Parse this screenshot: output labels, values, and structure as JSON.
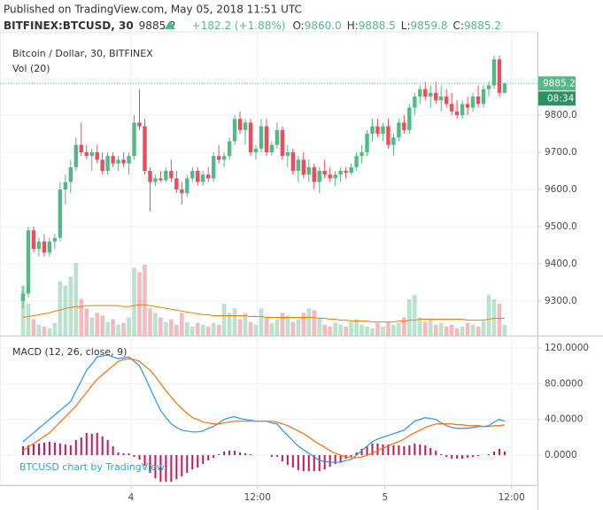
{
  "header": {
    "published": "Published on TradingView.com, May 05, 2018 11:51 UTC",
    "symbol": "BITFINEX:BTCUSD, 30",
    "last": "9885.2",
    "change": "+182.2 (+1.88%)",
    "ohlc": [
      {
        "label": "O:",
        "value": "9860.0"
      },
      {
        "label": "H:",
        "value": "9888.5"
      },
      {
        "label": "L:",
        "value": "9859.8"
      },
      {
        "label": "C:",
        "value": "9885.2"
      }
    ]
  },
  "watermark": "BTCUSD chart by TradingView",
  "chart_data": [
    {
      "type": "candlestick",
      "title": "Bitcoin / Dollar, 30, BITFINEX",
      "volume_title": "Vol (20)",
      "up_color": "#53b987",
      "down_color": "#eb4d5c",
      "volume_ma_color": "#f57c00",
      "price_label": "9885.2",
      "countdown": "08:34",
      "xlim": [
        -4.35,
        97.2
      ],
      "ylim": [
        9207,
        10024
      ],
      "yticks": [
        {
          "value": 9300,
          "label": "9300.0"
        },
        {
          "value": 9400,
          "label": "9400.0"
        },
        {
          "value": 9500,
          "label": "9500.0"
        },
        {
          "value": 9600,
          "label": "9600.0"
        },
        {
          "value": 9700,
          "label": "9700.0"
        },
        {
          "value": 9800,
          "label": "9800.0"
        }
      ],
      "open": [
        9300,
        9320,
        9490,
        9440,
        9460,
        9430,
        9460,
        9470,
        9600,
        9620,
        9660,
        9720,
        9700,
        9690,
        9700,
        9680,
        9650,
        9690,
        9670,
        9680,
        9670,
        9690,
        9780,
        9770,
        9650,
        9620,
        9630,
        9625,
        9650,
        9630,
        9600,
        9590,
        9630,
        9650,
        9620,
        9640,
        9630,
        9690,
        9680,
        9690,
        9730,
        9790,
        9760,
        9780,
        9700,
        9710,
        9770,
        9700,
        9720,
        9760,
        9690,
        9700,
        9650,
        9680,
        9640,
        9660,
        9620,
        9650,
        9640,
        9630,
        9640,
        9650,
        9645,
        9660,
        9690,
        9700,
        9750,
        9770,
        9750,
        9770,
        9720,
        9740,
        9780,
        9760,
        9820,
        9850,
        9870,
        9850,
        9860,
        9840,
        9850,
        9830,
        9810,
        9800,
        9830,
        9820,
        9850,
        9830,
        9870,
        9880,
        9950,
        9860
      ],
      "high": [
        9340,
        9500,
        9500,
        9470,
        9480,
        9470,
        9480,
        9620,
        9640,
        9680,
        9740,
        9780,
        9720,
        9710,
        9720,
        9700,
        9700,
        9700,
        9690,
        9700,
        9700,
        9800,
        9870,
        9790,
        9660,
        9640,
        9650,
        9660,
        9680,
        9650,
        9620,
        9640,
        9660,
        9660,
        9650,
        9660,
        9700,
        9720,
        9700,
        9740,
        9800,
        9810,
        9790,
        9790,
        9720,
        9790,
        9790,
        9730,
        9780,
        9770,
        9720,
        9710,
        9690,
        9700,
        9680,
        9670,
        9660,
        9680,
        9660,
        9650,
        9660,
        9660,
        9670,
        9700,
        9720,
        9760,
        9790,
        9790,
        9780,
        9790,
        9750,
        9790,
        9800,
        9830,
        9860,
        9880,
        9890,
        9880,
        9890,
        9880,
        9870,
        9860,
        9840,
        9840,
        9850,
        9860,
        9880,
        9880,
        9890,
        9960,
        9960,
        9888.5
      ],
      "low": [
        9280,
        9310,
        9430,
        9420,
        9420,
        9420,
        9440,
        9460,
        9560,
        9590,
        9650,
        9690,
        9680,
        9650,
        9670,
        9640,
        9640,
        9660,
        9650,
        9660,
        9640,
        9680,
        9760,
        9640,
        9540,
        9610,
        9620,
        9620,
        9620,
        9590,
        9560,
        9580,
        9620,
        9610,
        9610,
        9620,
        9620,
        9670,
        9660,
        9680,
        9720,
        9750,
        9720,
        9690,
        9680,
        9700,
        9690,
        9690,
        9710,
        9680,
        9660,
        9640,
        9620,
        9630,
        9620,
        9600,
        9590,
        9630,
        9620,
        9610,
        9620,
        9630,
        9640,
        9650,
        9670,
        9690,
        9730,
        9740,
        9730,
        9710,
        9690,
        9730,
        9750,
        9750,
        9800,
        9830,
        9840,
        9820,
        9830,
        9810,
        9820,
        9800,
        9790,
        9790,
        9800,
        9810,
        9820,
        9820,
        9850,
        9870,
        9850,
        9859.8
      ],
      "close": [
        9320,
        9490,
        9440,
        9460,
        9430,
        9460,
        9470,
        9600,
        9620,
        9660,
        9720,
        9700,
        9690,
        9700,
        9680,
        9650,
        9690,
        9670,
        9680,
        9670,
        9690,
        9780,
        9770,
        9650,
        9620,
        9630,
        9625,
        9650,
        9630,
        9600,
        9590,
        9630,
        9650,
        9620,
        9640,
        9630,
        9690,
        9680,
        9690,
        9730,
        9790,
        9760,
        9780,
        9700,
        9710,
        9770,
        9700,
        9720,
        9760,
        9690,
        9700,
        9650,
        9680,
        9640,
        9660,
        9620,
        9650,
        9640,
        9630,
        9640,
        9650,
        9645,
        9660,
        9690,
        9700,
        9750,
        9770,
        9750,
        9770,
        9720,
        9740,
        9780,
        9760,
        9820,
        9850,
        9870,
        9850,
        9860,
        9840,
        9850,
        9830,
        9810,
        9800,
        9830,
        9820,
        9850,
        9830,
        9870,
        9880,
        9950,
        9860,
        9885.2
      ],
      "volume": [
        55,
        35,
        18,
        12,
        10,
        8,
        14,
        60,
        55,
        65,
        80,
        40,
        30,
        20,
        25,
        22,
        15,
        18,
        12,
        14,
        20,
        75,
        70,
        78,
        30,
        25,
        20,
        15,
        18,
        12,
        25,
        15,
        10,
        14,
        12,
        10,
        14,
        12,
        35,
        25,
        30,
        18,
        25,
        15,
        12,
        30,
        20,
        14,
        18,
        25,
        22,
        15,
        18,
        25,
        30,
        28,
        20,
        12,
        10,
        14,
        12,
        10,
        15,
        18,
        12,
        10,
        8,
        14,
        10,
        15,
        12,
        14,
        20,
        40,
        45,
        20,
        15,
        18,
        12,
        14,
        10,
        12,
        8,
        10,
        14,
        12,
        10,
        16,
        45,
        40,
        35,
        12
      ],
      "volume_ma": [
        20,
        21,
        22,
        23,
        24,
        25,
        27,
        28,
        30,
        31,
        32,
        32,
        33,
        33,
        33,
        33,
        33,
        33,
        33,
        32,
        32,
        33,
        34,
        34,
        33,
        32,
        31,
        30,
        29,
        28,
        27,
        26,
        25,
        24,
        23,
        23,
        22,
        22,
        22,
        22,
        22,
        22,
        22,
        21,
        21,
        21,
        20,
        20,
        20,
        20,
        20,
        20,
        20,
        20,
        20,
        20,
        19,
        19,
        18,
        18,
        17,
        17,
        16,
        16,
        16,
        16,
        15,
        15,
        15,
        15,
        15,
        16,
        16,
        17,
        17,
        18,
        18,
        18,
        18,
        18,
        18,
        18,
        18,
        18,
        17,
        17,
        17,
        17,
        18,
        19,
        19,
        19
      ]
    },
    {
      "type": "line",
      "title": "MACD (12, 26, close, 9)",
      "xlim": [
        -4.35,
        97.2
      ],
      "ylim": [
        -33.7,
        132.9
      ],
      "yticks": [
        {
          "value": 0,
          "label": "0.0000"
        },
        {
          "value": 40,
          "label": "40.0000"
        },
        {
          "value": 80,
          "label": "80.0000"
        },
        {
          "value": 120,
          "label": "120.0000"
        }
      ],
      "xticks": [
        {
          "value": 20.4,
          "label": "4"
        },
        {
          "value": 44.3,
          "label": "12:00"
        },
        {
          "value": 68.4,
          "label": "5"
        },
        {
          "value": 92.3,
          "label": "12:00"
        }
      ],
      "series": [
        {
          "type": "bar",
          "color": "#c2185b",
          "values": [
            10,
            11,
            12,
            13,
            14,
            15,
            14,
            13,
            12,
            11,
            17,
            20,
            25,
            24,
            25,
            21,
            17,
            10,
            3,
            2,
            2,
            -2,
            -5,
            -12,
            -20,
            -26,
            -30,
            -30,
            -30,
            -27,
            -24,
            -20,
            -16,
            -14,
            -10,
            -6,
            -3,
            1,
            4,
            5,
            5,
            3,
            2,
            1,
            0,
            0,
            0,
            -2,
            -2,
            -7,
            -11,
            -14,
            -17,
            -18,
            -18,
            -18,
            -18,
            -16,
            -13,
            -10,
            -8,
            -4,
            -2,
            3,
            7,
            10,
            13,
            13,
            12,
            12,
            11,
            11,
            10,
            11,
            13,
            12,
            11,
            8,
            5,
            1,
            -2,
            -4,
            -4,
            -4,
            -3,
            -2,
            -1,
            0,
            1,
            4,
            7,
            4
          ]
        },
        {
          "type": "line",
          "color": "#2196f3",
          "values": [
            15,
            20,
            25,
            30,
            35,
            40,
            45,
            50,
            55,
            60,
            72,
            83,
            95,
            102,
            110,
            111,
            112,
            110,
            108,
            109,
            110,
            105,
            100,
            88,
            75,
            62,
            50,
            42,
            35,
            31,
            28,
            27,
            26,
            26,
            27,
            30,
            32,
            36,
            40,
            42,
            43,
            41,
            40,
            39,
            38,
            38,
            38,
            36,
            35,
            28,
            22,
            16,
            10,
            6,
            2,
            -2,
            -6,
            -7,
            -8,
            -8,
            -8,
            -6,
            -5,
            0,
            5,
            10,
            15,
            18,
            20,
            22,
            24,
            26,
            28,
            33,
            38,
            40,
            42,
            41,
            40,
            36,
            33,
            31,
            30,
            30,
            30,
            31,
            32,
            32,
            33,
            37,
            40,
            38
          ]
        },
        {
          "type": "line",
          "color": "#ff6d00",
          "values": [
            5,
            9,
            13,
            17,
            21,
            25,
            31,
            37,
            43,
            49,
            55,
            63,
            70,
            78,
            85,
            90,
            95,
            100,
            105,
            107,
            108,
            107,
            105,
            100,
            95,
            88,
            80,
            72,
            65,
            58,
            52,
            47,
            42,
            40,
            37,
            36,
            35,
            35,
            36,
            37,
            38,
            38,
            38,
            38,
            38,
            38,
            38,
            38,
            37,
            35,
            33,
            30,
            27,
            24,
            20,
            16,
            12,
            9,
            5,
            2,
            0,
            -2,
            -3,
            -3,
            -2,
            0,
            2,
            5,
            8,
            10,
            13,
            15,
            18,
            22,
            25,
            28,
            31,
            33,
            35,
            35,
            35,
            35,
            34,
            34,
            33,
            33,
            33,
            32,
            32,
            33,
            33,
            34
          ]
        }
      ]
    }
  ]
}
